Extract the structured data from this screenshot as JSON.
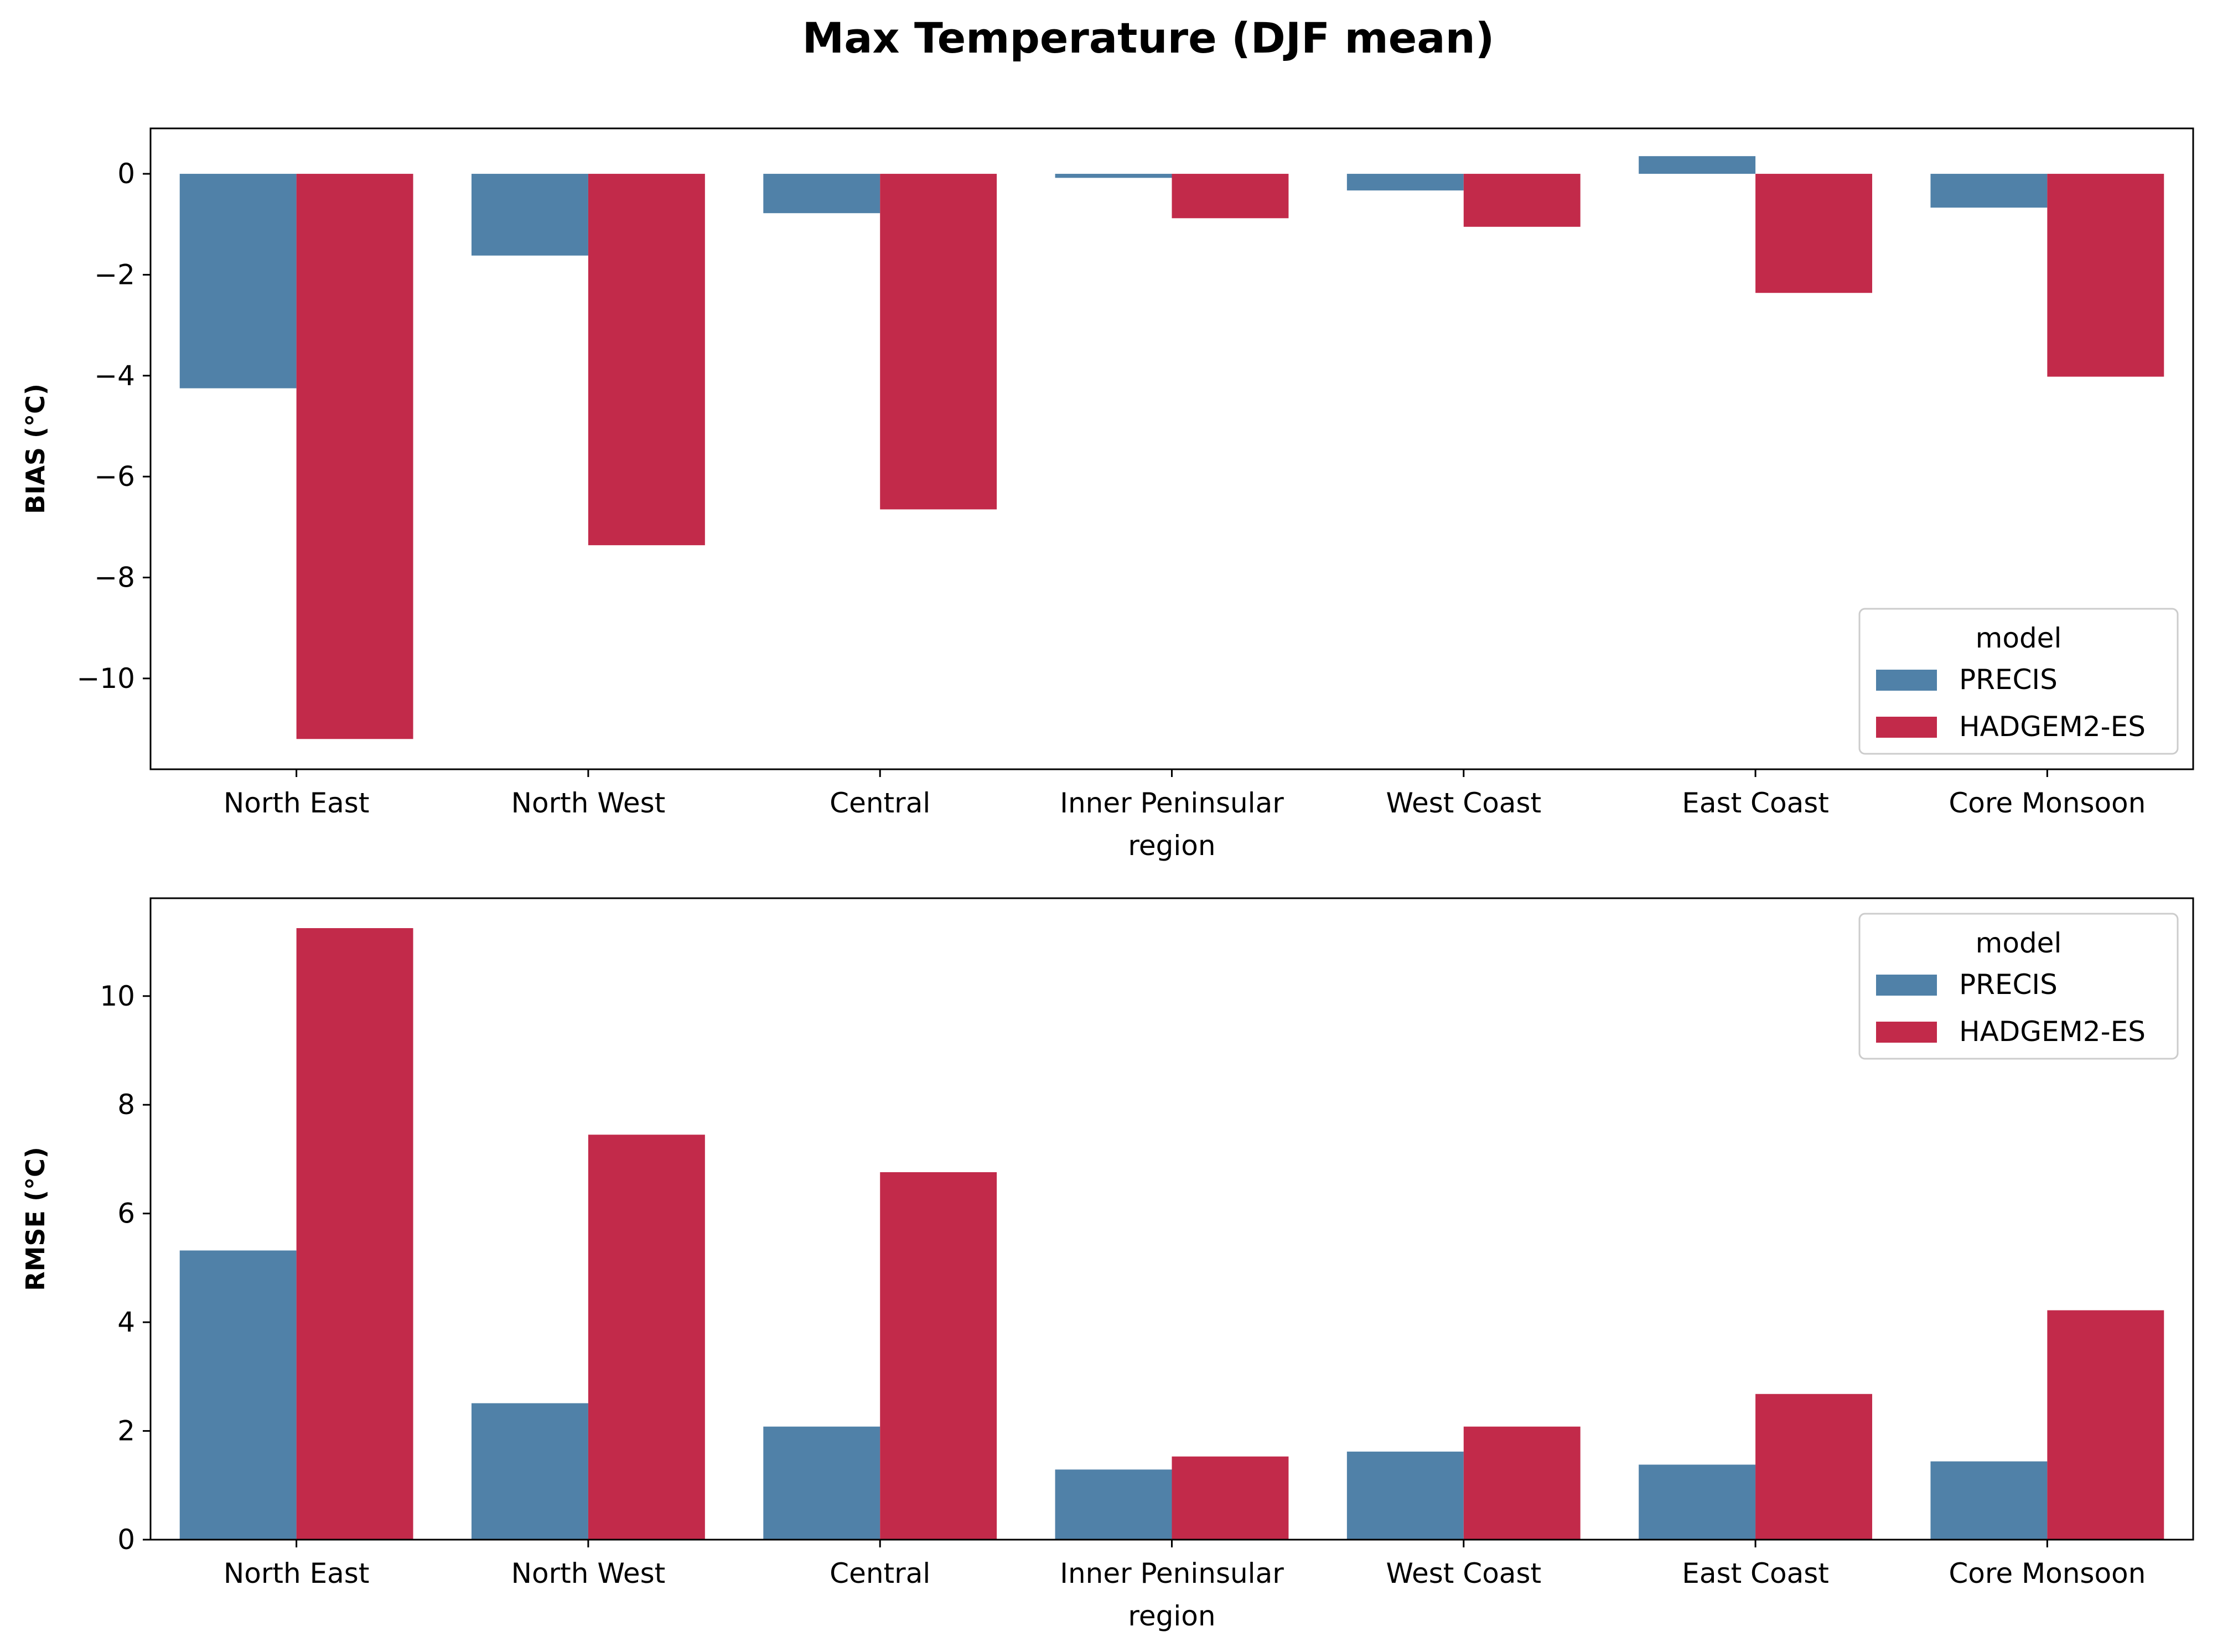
{
  "figure": {
    "title": "Max Temperature (DJF mean)"
  },
  "colors": {
    "PRECIS": "#5081a8",
    "HADGEM2-ES": "#c22a4a"
  },
  "chart_data": [
    {
      "type": "bar",
      "ylabel": "BIAS (°C)",
      "xlabel": "region",
      "categories": [
        "North East",
        "North West",
        "Central",
        "Inner Peninsular",
        "West Coast",
        "East Coast",
        "Core Monsoon"
      ],
      "series": [
        {
          "name": "PRECIS",
          "values": [
            -4.25,
            -1.62,
            -0.78,
            -0.08,
            -0.33,
            0.35,
            -0.67
          ]
        },
        {
          "name": "HADGEM2-ES",
          "values": [
            -11.2,
            -7.36,
            -6.65,
            -0.88,
            -1.05,
            -2.36,
            -4.02
          ]
        }
      ],
      "ylim": [
        -11.8,
        0.9
      ],
      "yticks": [
        0,
        -2,
        -4,
        -6,
        -8,
        -10
      ],
      "ytick_labels": [
        "0",
        "−2",
        "−4",
        "−6",
        "−8",
        "−10"
      ],
      "grid": false,
      "legend": {
        "title": "model",
        "position": "lower-right"
      }
    },
    {
      "type": "bar",
      "ylabel": "RMSE (°C)",
      "xlabel": "region",
      "categories": [
        "North East",
        "North West",
        "Central",
        "Inner Peninsular",
        "West Coast",
        "East Coast",
        "Core Monsoon"
      ],
      "series": [
        {
          "name": "PRECIS",
          "values": [
            5.32,
            2.51,
            2.08,
            1.29,
            1.62,
            1.38,
            1.44
          ]
        },
        {
          "name": "HADGEM2-ES",
          "values": [
            11.25,
            7.45,
            6.76,
            1.53,
            2.08,
            2.68,
            4.22
          ]
        }
      ],
      "ylim": [
        0,
        11.8
      ],
      "yticks": [
        0,
        2,
        4,
        6,
        8,
        10
      ],
      "ytick_labels": [
        "0",
        "2",
        "4",
        "6",
        "8",
        "10"
      ],
      "grid": false,
      "legend": {
        "title": "model",
        "position": "upper-right"
      }
    }
  ]
}
